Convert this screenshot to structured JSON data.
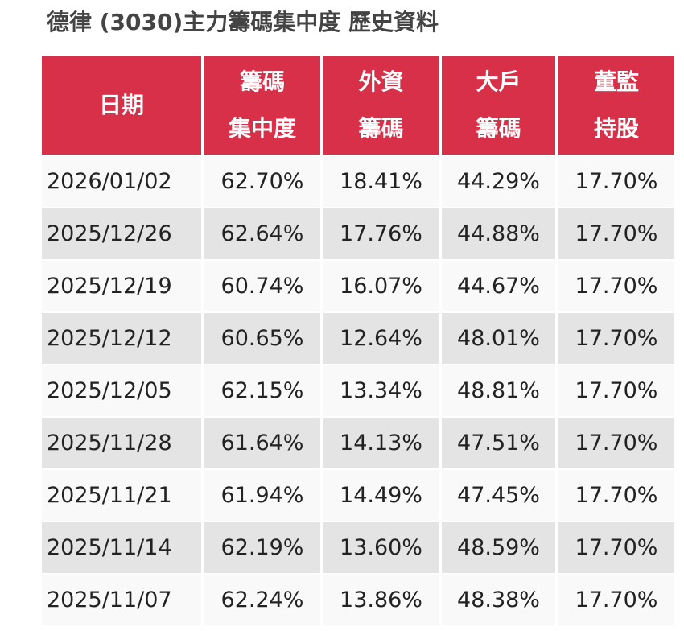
{
  "header": {
    "title": "德律 (3030)主力籌碼集中度 歷史資料"
  },
  "table": {
    "columns": [
      [
        "日期"
      ],
      [
        "籌碼",
        "集中度"
      ],
      [
        "外資",
        "籌碼"
      ],
      [
        "大戶",
        "籌碼"
      ],
      [
        "董監",
        "持股"
      ]
    ],
    "rows": [
      [
        "2026/01/02",
        "62.70%",
        "18.41%",
        "44.29%",
        "17.70%"
      ],
      [
        "2025/12/26",
        "62.64%",
        "17.76%",
        "44.88%",
        "17.70%"
      ],
      [
        "2025/12/19",
        "60.74%",
        "16.07%",
        "44.67%",
        "17.70%"
      ],
      [
        "2025/12/12",
        "60.65%",
        "12.64%",
        "48.01%",
        "17.70%"
      ],
      [
        "2025/12/05",
        "62.15%",
        "13.34%",
        "48.81%",
        "17.70%"
      ],
      [
        "2025/11/28",
        "61.64%",
        "14.13%",
        "47.51%",
        "17.70%"
      ],
      [
        "2025/11/21",
        "61.94%",
        "14.49%",
        "47.45%",
        "17.70%"
      ],
      [
        "2025/11/14",
        "62.19%",
        "13.60%",
        "48.59%",
        "17.70%"
      ],
      [
        "2025/11/07",
        "62.24%",
        "13.86%",
        "48.38%",
        "17.70%"
      ]
    ]
  }
}
